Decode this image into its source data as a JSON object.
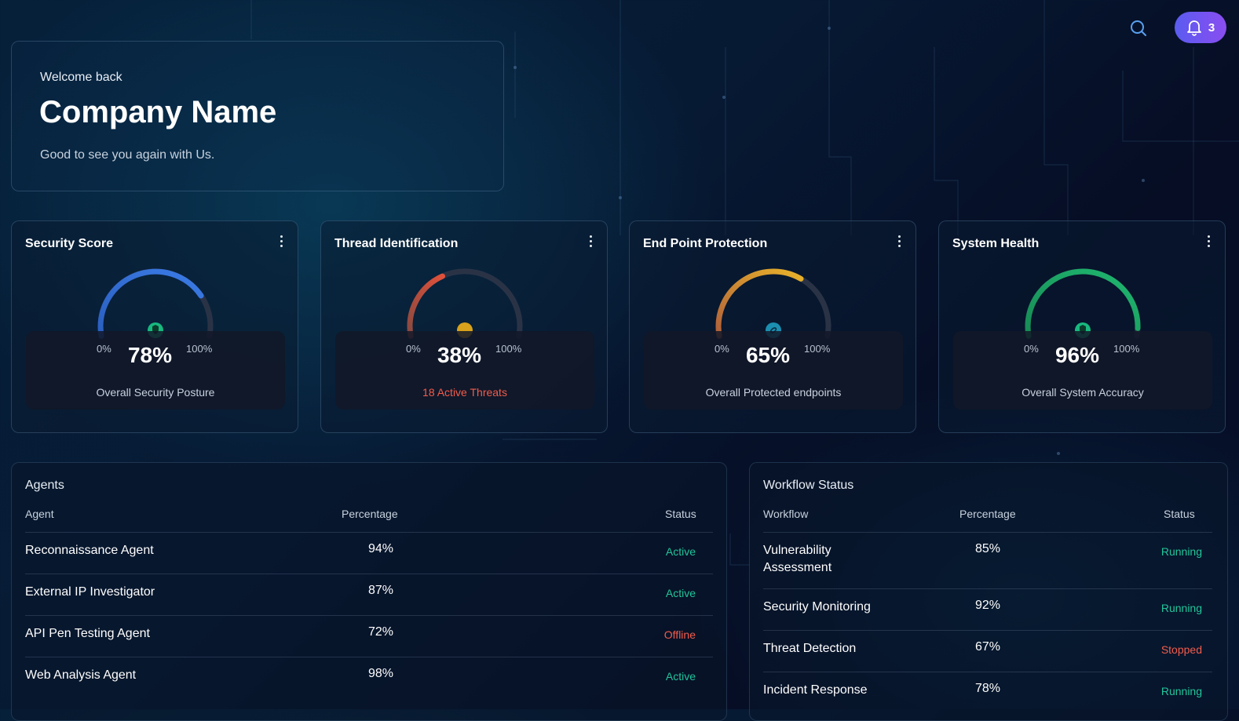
{
  "header": {
    "notification_count": "3",
    "icons": [
      "search-icon",
      "bell-icon"
    ],
    "notif_gradient": [
      "#5a5cf0",
      "#8a4df0"
    ]
  },
  "welcome": {
    "greeting": "Welcome back",
    "company": "Company Name",
    "subtitle": "Good to see you again with Us."
  },
  "metrics": [
    {
      "title": "Security Score",
      "min": "0%",
      "max": "100%",
      "value_text": "78%",
      "value": 78,
      "caption": "Overall Security Posture",
      "caption_alert": false,
      "color": "#3b7be6",
      "color2": "#2a5fc0",
      "icon": "shield-icon",
      "icon_color": "#18b87f"
    },
    {
      "title": "Thread Identification",
      "min": "0%",
      "max": "100%",
      "value_text": "38%",
      "value": 38,
      "caption": "18 Active Threats",
      "caption_alert": true,
      "color": "#e0503a",
      "color2": "#8a4a40",
      "icon": "dot-icon",
      "icon_color": "#d9a21c"
    },
    {
      "title": "End Point Protection",
      "min": "0%",
      "max": "100%",
      "value_text": "65%",
      "value": 65,
      "caption": "Overall Protected endpoints",
      "caption_alert": false,
      "color": "#e8b22a",
      "color2": "#b0603a",
      "icon": "link-icon",
      "icon_color": "#1c8fb0"
    },
    {
      "title": "System Health",
      "min": "0%",
      "max": "100%",
      "value_text": "96%",
      "value": 96,
      "caption": "Overall System Accuracy",
      "caption_alert": false,
      "color": "#1fb870",
      "color2": "#178a55",
      "icon": "shield-icon",
      "icon_color": "#18b87f"
    }
  ],
  "agents": {
    "title": "Agents",
    "columns": [
      "Agent",
      "Percentage",
      "Status"
    ],
    "rows": [
      {
        "name": "Reconnaissance Agent",
        "pct": "94%",
        "status": "Active"
      },
      {
        "name": "External IP Investigator",
        "pct": "87%",
        "status": "Active"
      },
      {
        "name": "API Pen Testing Agent",
        "pct": "72%",
        "status": "Offline"
      },
      {
        "name": "Web Analysis Agent",
        "pct": "98%",
        "status": "Active"
      }
    ]
  },
  "workflow": {
    "title": "Workflow Status",
    "columns": [
      "Workflow",
      "Percentage",
      "Status"
    ],
    "rows": [
      {
        "name": "Vulnerability\nAssessment",
        "pct": "85%",
        "status": "Running"
      },
      {
        "name": "Security Monitoring",
        "pct": "92%",
        "status": "Running"
      },
      {
        "name": "Threat Detection",
        "pct": "67%",
        "status": "Stopped"
      },
      {
        "name": "Incident Response",
        "pct": "78%",
        "status": "Running"
      }
    ]
  },
  "colors": {
    "status_good": "#22c59a",
    "status_bad": "#f25c4c"
  }
}
